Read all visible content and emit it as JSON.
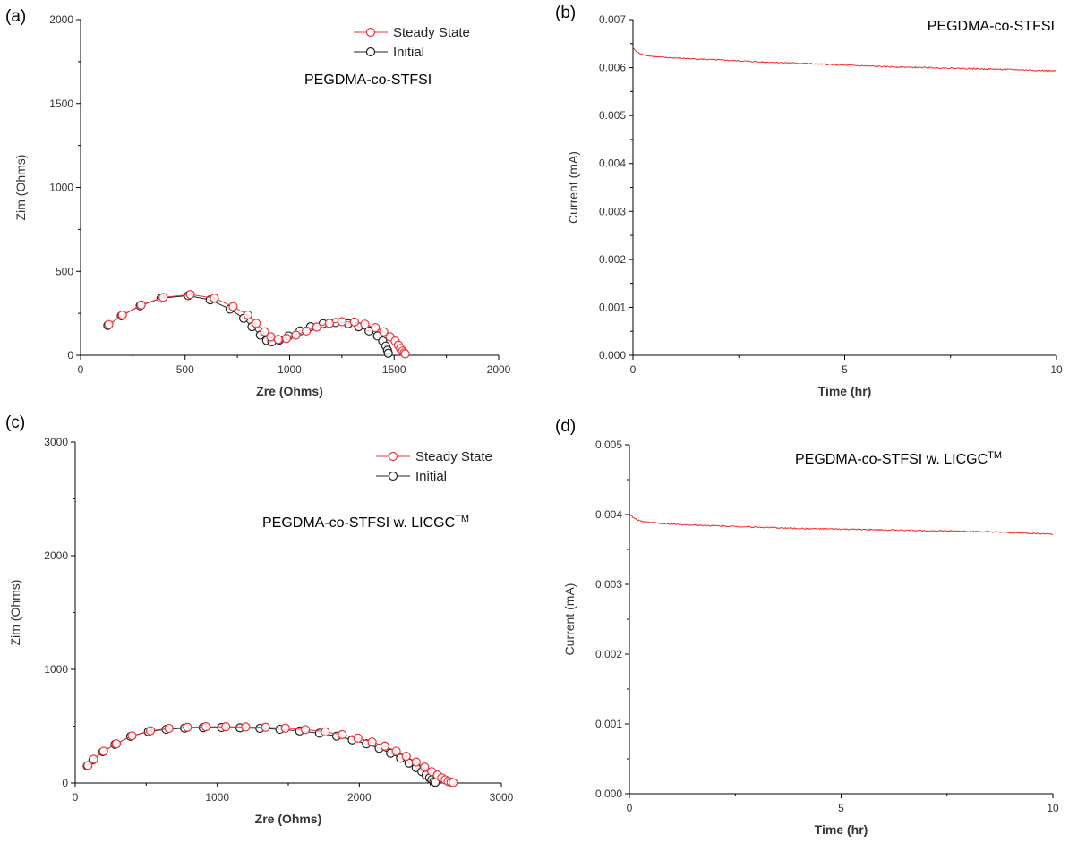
{
  "colors": {
    "steady": "#e8333a",
    "initial": "#222222",
    "current": "#ee2b2b"
  },
  "chart_data": [
    {
      "panel": "(a)",
      "type": "scatter",
      "annotation": "PEGDMA-co-STFSI",
      "xlabel": "Zre (Ohms)",
      "ylabel": "Zim (Ohms)",
      "xlim": [
        0,
        2000
      ],
      "ylim": [
        0,
        2000
      ],
      "xticks": [
        "0",
        "500",
        "1000",
        "1500",
        "2000"
      ],
      "yticks": [
        "0",
        "500",
        "1000",
        "1500",
        "2000"
      ],
      "legend": "top-right",
      "series": [
        {
          "name": "Steady State",
          "points": [
            [
              135,
              183
            ],
            [
              200,
              240
            ],
            [
              290,
              300
            ],
            [
              395,
              345
            ],
            [
              525,
              362
            ],
            [
              640,
              340
            ],
            [
              730,
              290
            ],
            [
              800,
              240
            ],
            [
              840,
              190
            ],
            [
              880,
              140
            ],
            [
              910,
              110
            ],
            [
              945,
              95
            ],
            [
              985,
              100
            ],
            [
              1030,
              120
            ],
            [
              1080,
              145
            ],
            [
              1130,
              168
            ],
            [
              1190,
              190
            ],
            [
              1250,
              200
            ],
            [
              1310,
              198
            ],
            [
              1360,
              185
            ],
            [
              1410,
              165
            ],
            [
              1450,
              140
            ],
            [
              1480,
              110
            ],
            [
              1505,
              85
            ],
            [
              1520,
              60
            ],
            [
              1530,
              40
            ],
            [
              1540,
              25
            ],
            [
              1548,
              15
            ],
            [
              1553,
              8
            ]
          ]
        },
        {
          "name": "Initial",
          "points": [
            [
              130,
              178
            ],
            [
              195,
              235
            ],
            [
              285,
              295
            ],
            [
              385,
              340
            ],
            [
              515,
              355
            ],
            [
              620,
              330
            ],
            [
              715,
              275
            ],
            [
              780,
              220
            ],
            [
              820,
              170
            ],
            [
              860,
              120
            ],
            [
              890,
              88
            ],
            [
              915,
              80
            ],
            [
              950,
              90
            ],
            [
              995,
              115
            ],
            [
              1050,
              145
            ],
            [
              1100,
              170
            ],
            [
              1160,
              188
            ],
            [
              1220,
              195
            ],
            [
              1280,
              188
            ],
            [
              1330,
              170
            ],
            [
              1380,
              145
            ],
            [
              1420,
              115
            ],
            [
              1445,
              85
            ],
            [
              1460,
              55
            ],
            [
              1468,
              30
            ],
            [
              1472,
              12
            ]
          ]
        }
      ]
    },
    {
      "panel": "(b)",
      "type": "line",
      "annotation": "PEGDMA-co-STFSI",
      "xlabel": "Time (hr)",
      "ylabel": "Current (mA)",
      "xlim": [
        0,
        10
      ],
      "ylim": [
        0,
        0.007
      ],
      "xticks": [
        "0",
        "5",
        "10"
      ],
      "yticks": [
        "0.000",
        "0.001",
        "0.002",
        "0.003",
        "0.004",
        "0.005",
        "0.006",
        "0.007"
      ],
      "x": [
        0,
        0.05,
        0.1,
        0.2,
        0.35,
        0.5,
        0.75,
        1,
        1.5,
        2,
        3,
        4,
        5,
        6,
        7,
        8,
        9,
        10
      ],
      "values": [
        0.00642,
        0.00636,
        0.00632,
        0.00628,
        0.00625,
        0.00623,
        0.00621,
        0.0062,
        0.00618,
        0.00616,
        0.00612,
        0.00609,
        0.00605,
        0.00602,
        0.006,
        0.00598,
        0.00596,
        0.00593
      ]
    },
    {
      "panel": "(c)",
      "type": "scatter",
      "annotation": "PEGDMA-co-STFSI w. LICGC",
      "annotation_sup": "TM",
      "xlabel": "Zre (Ohms)",
      "ylabel": "Zim (Ohms)",
      "xlim": [
        0,
        3000
      ],
      "ylim": [
        0,
        3000
      ],
      "xticks": [
        "0",
        "1000",
        "2000",
        "3000"
      ],
      "yticks": [
        "0",
        "1000",
        "2000",
        "3000"
      ],
      "legend": "top-right",
      "series": [
        {
          "name": "Steady State",
          "points": [
            [
              90,
              155
            ],
            [
              130,
              210
            ],
            [
              200,
              280
            ],
            [
              290,
              345
            ],
            [
              400,
              415
            ],
            [
              530,
              460
            ],
            [
              660,
              480
            ],
            [
              790,
              490
            ],
            [
              920,
              495
            ],
            [
              1060,
              495
            ],
            [
              1200,
              493
            ],
            [
              1340,
              490
            ],
            [
              1480,
              482
            ],
            [
              1620,
              470
            ],
            [
              1760,
              450
            ],
            [
              1880,
              425
            ],
            [
              1990,
              395
            ],
            [
              2090,
              360
            ],
            [
              2180,
              325
            ],
            [
              2260,
              280
            ],
            [
              2330,
              235
            ],
            [
              2400,
              185
            ],
            [
              2460,
              140
            ],
            [
              2510,
              100
            ],
            [
              2550,
              70
            ],
            [
              2580,
              45
            ],
            [
              2605,
              28
            ],
            [
              2625,
              15
            ],
            [
              2645,
              8
            ],
            [
              2660,
              4
            ]
          ]
        },
        {
          "name": "Initial",
          "points": [
            [
              85,
              150
            ],
            [
              125,
              205
            ],
            [
              195,
              275
            ],
            [
              280,
              340
            ],
            [
              390,
              410
            ],
            [
              515,
              452
            ],
            [
              640,
              472
            ],
            [
              770,
              482
            ],
            [
              900,
              487
            ],
            [
              1030,
              488
            ],
            [
              1160,
              485
            ],
            [
              1300,
              480
            ],
            [
              1440,
              472
            ],
            [
              1580,
              458
            ],
            [
              1720,
              438
            ],
            [
              1840,
              412
            ],
            [
              1950,
              380
            ],
            [
              2050,
              345
            ],
            [
              2140,
              305
            ],
            [
              2220,
              262
            ],
            [
              2290,
              218
            ],
            [
              2350,
              175
            ],
            [
              2400,
              135
            ],
            [
              2440,
              100
            ],
            [
              2470,
              70
            ],
            [
              2495,
              45
            ],
            [
              2510,
              28
            ],
            [
              2525,
              14
            ],
            [
              2535,
              6
            ]
          ]
        }
      ]
    },
    {
      "panel": "(d)",
      "type": "line",
      "annotation": "PEGDMA-co-STFSI w. LICGC",
      "annotation_sup": "TM",
      "xlabel": "Time (hr)",
      "ylabel": "Current (mA)",
      "xlim": [
        0,
        10
      ],
      "ylim": [
        0,
        0.005
      ],
      "xticks": [
        "0",
        "5",
        "10"
      ],
      "yticks": [
        "0.000",
        "0.001",
        "0.002",
        "0.003",
        "0.004",
        "0.005"
      ],
      "x": [
        0,
        0.05,
        0.1,
        0.2,
        0.35,
        0.5,
        0.75,
        1,
        1.5,
        2,
        3,
        4,
        5,
        6,
        7,
        8,
        9,
        10
      ],
      "values": [
        0.00402,
        0.00398,
        0.00395,
        0.00392,
        0.0039,
        0.00389,
        0.00387,
        0.00386,
        0.00385,
        0.00384,
        0.00382,
        0.0038,
        0.00379,
        0.00378,
        0.00377,
        0.00376,
        0.00374,
        0.00372
      ]
    }
  ]
}
